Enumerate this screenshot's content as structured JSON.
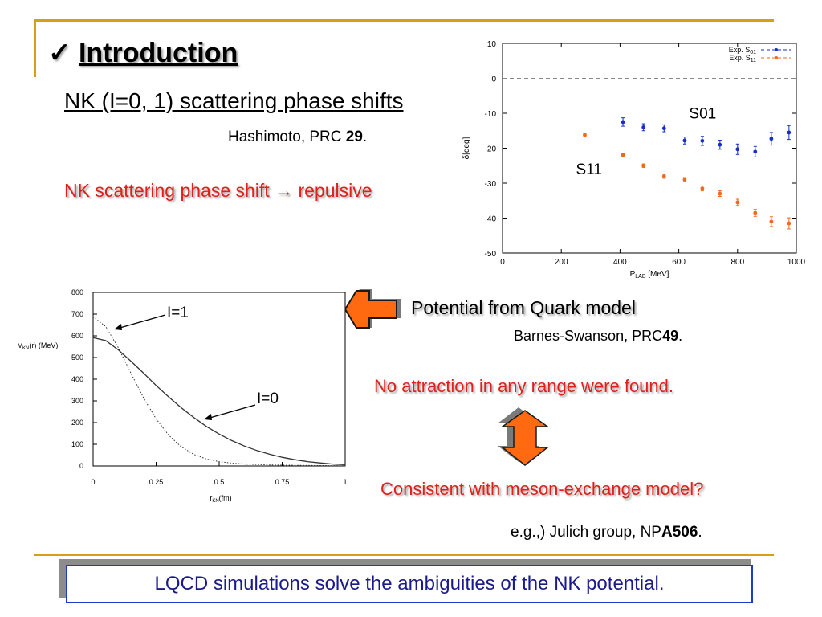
{
  "slide": {
    "title_check": "✓",
    "title": "Introduction",
    "subtitle": "NK (I=0, 1) scattering phase shifts",
    "citation_1_text": "Hashimoto, PRC ",
    "citation_1_bold": "29",
    "citation_1_end": ".",
    "statement_1": "NK scattering phase shift → repulsive",
    "potential_label": "Potential from Quark model",
    "citation_2_text": "Barnes-Swanson, PRC",
    "citation_2_bold": "49",
    "citation_2_end": ".",
    "statement_2": "No attraction in any range were found.",
    "statement_3": "Consistent with meson-exchange model?",
    "citation_3_text": "e.g.,) Julich group, NP",
    "citation_3_bold": "A506",
    "citation_3_end": ".",
    "conclusion": "LQCD simulations solve the ambiguities of the NK potential."
  },
  "colors": {
    "rule": "#d4a017",
    "red_text": "#e0201a",
    "blue_series": "#1530c8",
    "orange_series": "#f06a1c",
    "arrow_orange": "#ff6a10"
  },
  "chart_data": [
    {
      "type": "scatter",
      "xlabel_main": "P",
      "xlabel_sub": "LAB",
      "xlabel_unit": "[MeV]",
      "ylabel": "δ[deg]",
      "xlim": [
        0,
        1000
      ],
      "ylim": [
        -50,
        10
      ],
      "x_ticks": [
        "0",
        "200",
        "400",
        "600",
        "800",
        "1000"
      ],
      "y_ticks": [
        "10",
        "0",
        "-10",
        "-20",
        "-30",
        "-40",
        "-50"
      ],
      "legend_position": "top-right",
      "reference_line_y": 0,
      "series": [
        {
          "name": "Exp. S",
          "name_sub": "01",
          "label": "S01",
          "color": "#1530c8",
          "x": [
            410,
            480,
            550,
            620,
            680,
            740,
            800,
            860,
            915,
            975
          ],
          "y": [
            -12.5,
            -14.0,
            -14.3,
            -17.8,
            -17.9,
            -19.0,
            -20.3,
            -21.0,
            -17.3,
            -15.5
          ],
          "err": [
            1.2,
            1.0,
            1.0,
            1.0,
            1.3,
            1.3,
            1.5,
            1.5,
            1.8,
            2.0
          ]
        },
        {
          "name": "Exp. S",
          "name_sub": "11",
          "label": "S11",
          "color": "#f06a1c",
          "x": [
            280,
            410,
            480,
            550,
            620,
            680,
            740,
            800,
            860,
            915,
            975
          ],
          "y": [
            -16.2,
            -22.0,
            -25.0,
            -28.0,
            -29.0,
            -31.5,
            -33.0,
            -35.5,
            -38.5,
            -41.0,
            -41.5
          ],
          "err": [
            0.4,
            0.5,
            0.5,
            0.6,
            0.6,
            0.7,
            0.8,
            0.9,
            1.0,
            1.4,
            1.6
          ]
        }
      ]
    },
    {
      "type": "line",
      "xlabel_main": "r",
      "xlabel_sub": "KN",
      "xlabel_unit": "(fm)",
      "ylabel_main": "V",
      "ylabel_sub": "KN",
      "ylabel_unit": "(r)  (MeV)",
      "xlim": [
        0,
        1
      ],
      "ylim": [
        0,
        800
      ],
      "x_ticks": [
        "0",
        "0.25",
        "0.5",
        "0.75",
        "1"
      ],
      "y_ticks": [
        "0",
        "100",
        "200",
        "300",
        "400",
        "500",
        "600",
        "700",
        "800"
      ],
      "series": [
        {
          "name": "I=0",
          "style": "solid",
          "x": [
            0,
            0.05,
            0.1,
            0.15,
            0.2,
            0.25,
            0.3,
            0.35,
            0.4,
            0.45,
            0.5,
            0.55,
            0.6,
            0.65,
            0.7,
            0.75,
            0.8,
            0.85,
            0.9,
            0.95,
            1.0
          ],
          "y": [
            592,
            578,
            535,
            483,
            428,
            371,
            318,
            268,
            223,
            182,
            147,
            117,
            92,
            71,
            54,
            40,
            29,
            20,
            14,
            9,
            6
          ]
        },
        {
          "name": "I=1",
          "style": "dotted",
          "x": [
            0,
            0.05,
            0.1,
            0.15,
            0.2,
            0.25,
            0.3,
            0.35,
            0.4,
            0.45,
            0.5,
            0.55,
            0.6,
            0.65,
            0.7,
            0.75,
            0.8,
            0.9,
            1.0
          ],
          "y": [
            688,
            643,
            545,
            428,
            314,
            217,
            142,
            88,
            53,
            32,
            20,
            13,
            9,
            7,
            5,
            4,
            3,
            2,
            1
          ]
        }
      ]
    }
  ]
}
